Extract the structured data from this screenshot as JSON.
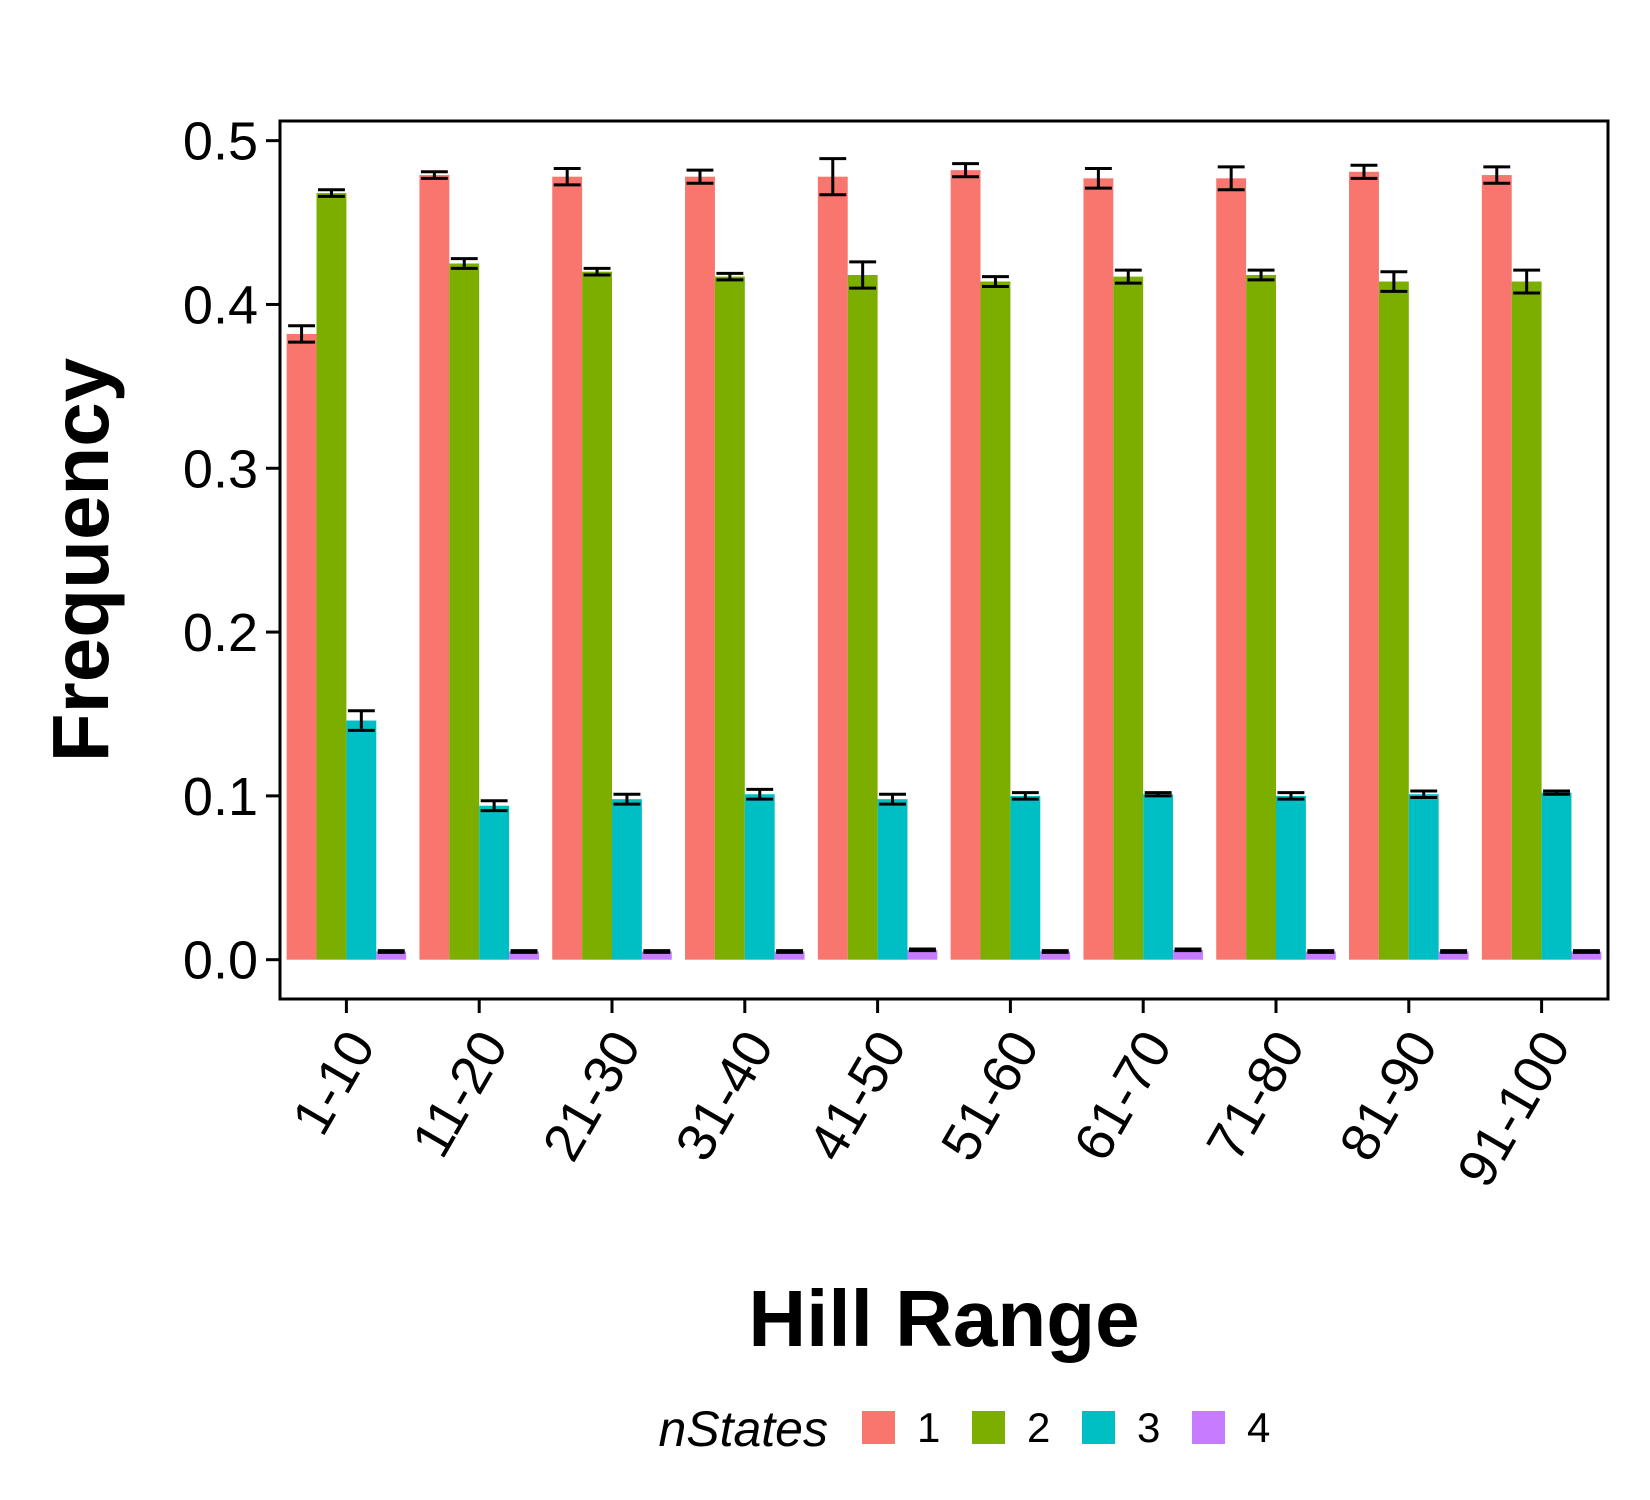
{
  "chart_data": {
    "type": "bar",
    "xlabel": "Hill Range",
    "ylabel": "Frequency",
    "ylim": [
      -0.024,
      0.512
    ],
    "yticks": [
      "0.0",
      "0.1",
      "0.2",
      "0.3",
      "0.4",
      "0.5"
    ],
    "categories": [
      "1-10",
      "11-20",
      "21-30",
      "31-40",
      "41-50",
      "51-60",
      "61-70",
      "71-80",
      "81-90",
      "91-100"
    ],
    "legend": {
      "title": "nStates",
      "placement": "bottom"
    },
    "grid": false,
    "series": [
      {
        "name": "1",
        "color": "#F8766D",
        "values": [
          0.382,
          0.479,
          0.478,
          0.478,
          0.478,
          0.482,
          0.477,
          0.477,
          0.481,
          0.479
        ],
        "errors": [
          0.005,
          0.002,
          0.005,
          0.004,
          0.011,
          0.004,
          0.006,
          0.007,
          0.004,
          0.005
        ]
      },
      {
        "name": "2",
        "color": "#7CAE00",
        "values": [
          0.468,
          0.425,
          0.42,
          0.417,
          0.418,
          0.414,
          0.417,
          0.418,
          0.414,
          0.414
        ],
        "errors": [
          0.002,
          0.003,
          0.002,
          0.002,
          0.008,
          0.003,
          0.004,
          0.003,
          0.006,
          0.007
        ]
      },
      {
        "name": "3",
        "color": "#00BFC4",
        "values": [
          0.146,
          0.094,
          0.098,
          0.101,
          0.098,
          0.1,
          0.101,
          0.1,
          0.101,
          0.102
        ],
        "errors": [
          0.006,
          0.003,
          0.003,
          0.003,
          0.003,
          0.002,
          0.001,
          0.002,
          0.002,
          0.001
        ]
      },
      {
        "name": "4",
        "color": "#C77CFF",
        "values": [
          0.005,
          0.005,
          0.005,
          0.005,
          0.006,
          0.005,
          0.006,
          0.005,
          0.005,
          0.005
        ],
        "errors": [
          0.0005,
          0.0005,
          0.0005,
          0.0005,
          0.0005,
          0.0005,
          0.0005,
          0.0005,
          0.0005,
          0.0005
        ]
      }
    ]
  }
}
